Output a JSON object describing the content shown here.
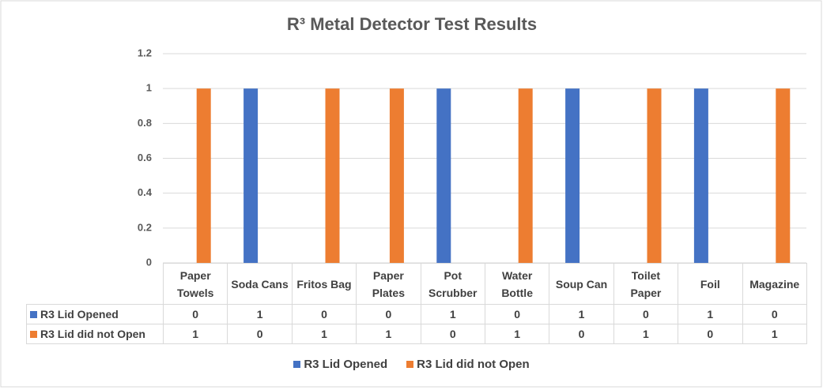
{
  "chart_data": {
    "type": "bar",
    "title": "R³ Metal Detector Test Results",
    "categories": [
      "Paper Towels",
      "Soda Cans",
      "Fritos Bag",
      "Paper Plates",
      "Pot Scrubber",
      "Water Bottle",
      "Soup Can",
      "Toilet Paper",
      "Foil",
      "Magazine"
    ],
    "series": [
      {
        "name": "R3 Lid Opened",
        "color": "#4472c4",
        "values": [
          0,
          1,
          0,
          0,
          1,
          0,
          1,
          0,
          1,
          0
        ]
      },
      {
        "name": "R3 Lid did not Open",
        "color": "#ed7d31",
        "values": [
          1,
          0,
          1,
          1,
          0,
          1,
          0,
          1,
          0,
          1
        ]
      }
    ],
    "ylim": [
      0,
      1.2
    ],
    "yticks": [
      0,
      0.2,
      0.4,
      0.6,
      0.8,
      1,
      1.2
    ],
    "grid": true,
    "legend": "bottom"
  }
}
